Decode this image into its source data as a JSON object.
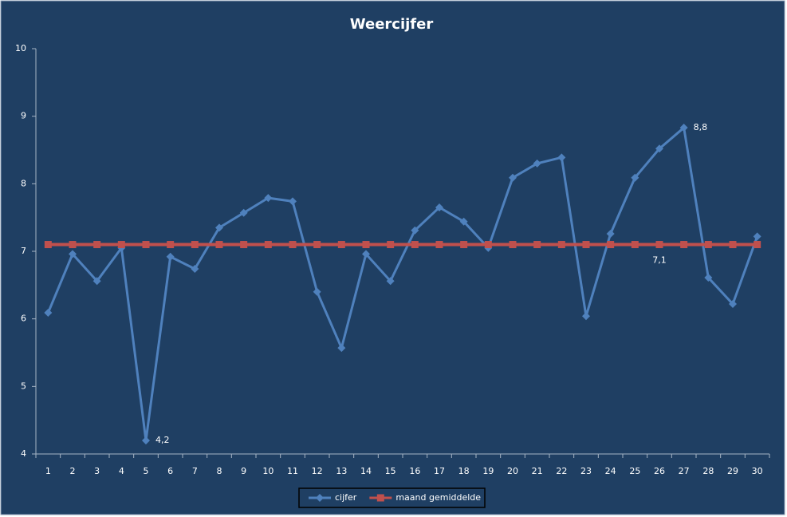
{
  "chart_data": {
    "type": "line",
    "title": "Weercijfer",
    "categories": [
      "1",
      "2",
      "3",
      "4",
      "5",
      "6",
      "7",
      "8",
      "9",
      "10",
      "11",
      "12",
      "13",
      "14",
      "15",
      "16",
      "17",
      "18",
      "19",
      "20",
      "21",
      "22",
      "23",
      "24",
      "25",
      "26",
      "27",
      "28",
      "29",
      "30"
    ],
    "series": [
      {
        "name": "cijfer",
        "color": "#4f81bd",
        "marker": "diamond",
        "values": [
          6.09,
          6.96,
          6.56,
          7.05,
          4.2,
          6.92,
          6.74,
          7.35,
          7.57,
          7.79,
          7.74,
          6.4,
          5.57,
          6.96,
          6.56,
          7.31,
          7.65,
          7.44,
          7.05,
          8.09,
          8.3,
          8.39,
          6.04,
          7.26,
          8.09,
          8.52,
          8.83,
          6.61,
          6.22,
          7.22
        ],
        "value_labels": [
          null,
          null,
          null,
          null,
          "4,2",
          null,
          null,
          null,
          null,
          null,
          null,
          null,
          null,
          null,
          null,
          null,
          null,
          null,
          null,
          null,
          null,
          null,
          null,
          null,
          null,
          null,
          "8,8",
          null,
          null,
          null
        ]
      },
      {
        "name": "maand gemiddelde",
        "color": "#c0504d",
        "marker": "square",
        "values": [
          7.1,
          7.1,
          7.1,
          7.1,
          7.1,
          7.1,
          7.1,
          7.1,
          7.1,
          7.1,
          7.1,
          7.1,
          7.1,
          7.1,
          7.1,
          7.1,
          7.1,
          7.1,
          7.1,
          7.1,
          7.1,
          7.1,
          7.1,
          7.1,
          7.1,
          7.1,
          7.1,
          7.1,
          7.1,
          7.1
        ],
        "value_labels": [
          null,
          null,
          null,
          null,
          null,
          null,
          null,
          null,
          null,
          null,
          null,
          null,
          null,
          null,
          null,
          null,
          null,
          null,
          null,
          null,
          null,
          null,
          null,
          null,
          null,
          "7,1",
          null,
          null,
          null,
          null
        ]
      }
    ],
    "ylim": [
      4,
      10
    ],
    "yticks": [
      4,
      5,
      6,
      7,
      8,
      9,
      10
    ],
    "grid": false,
    "legend": "bottom"
  }
}
